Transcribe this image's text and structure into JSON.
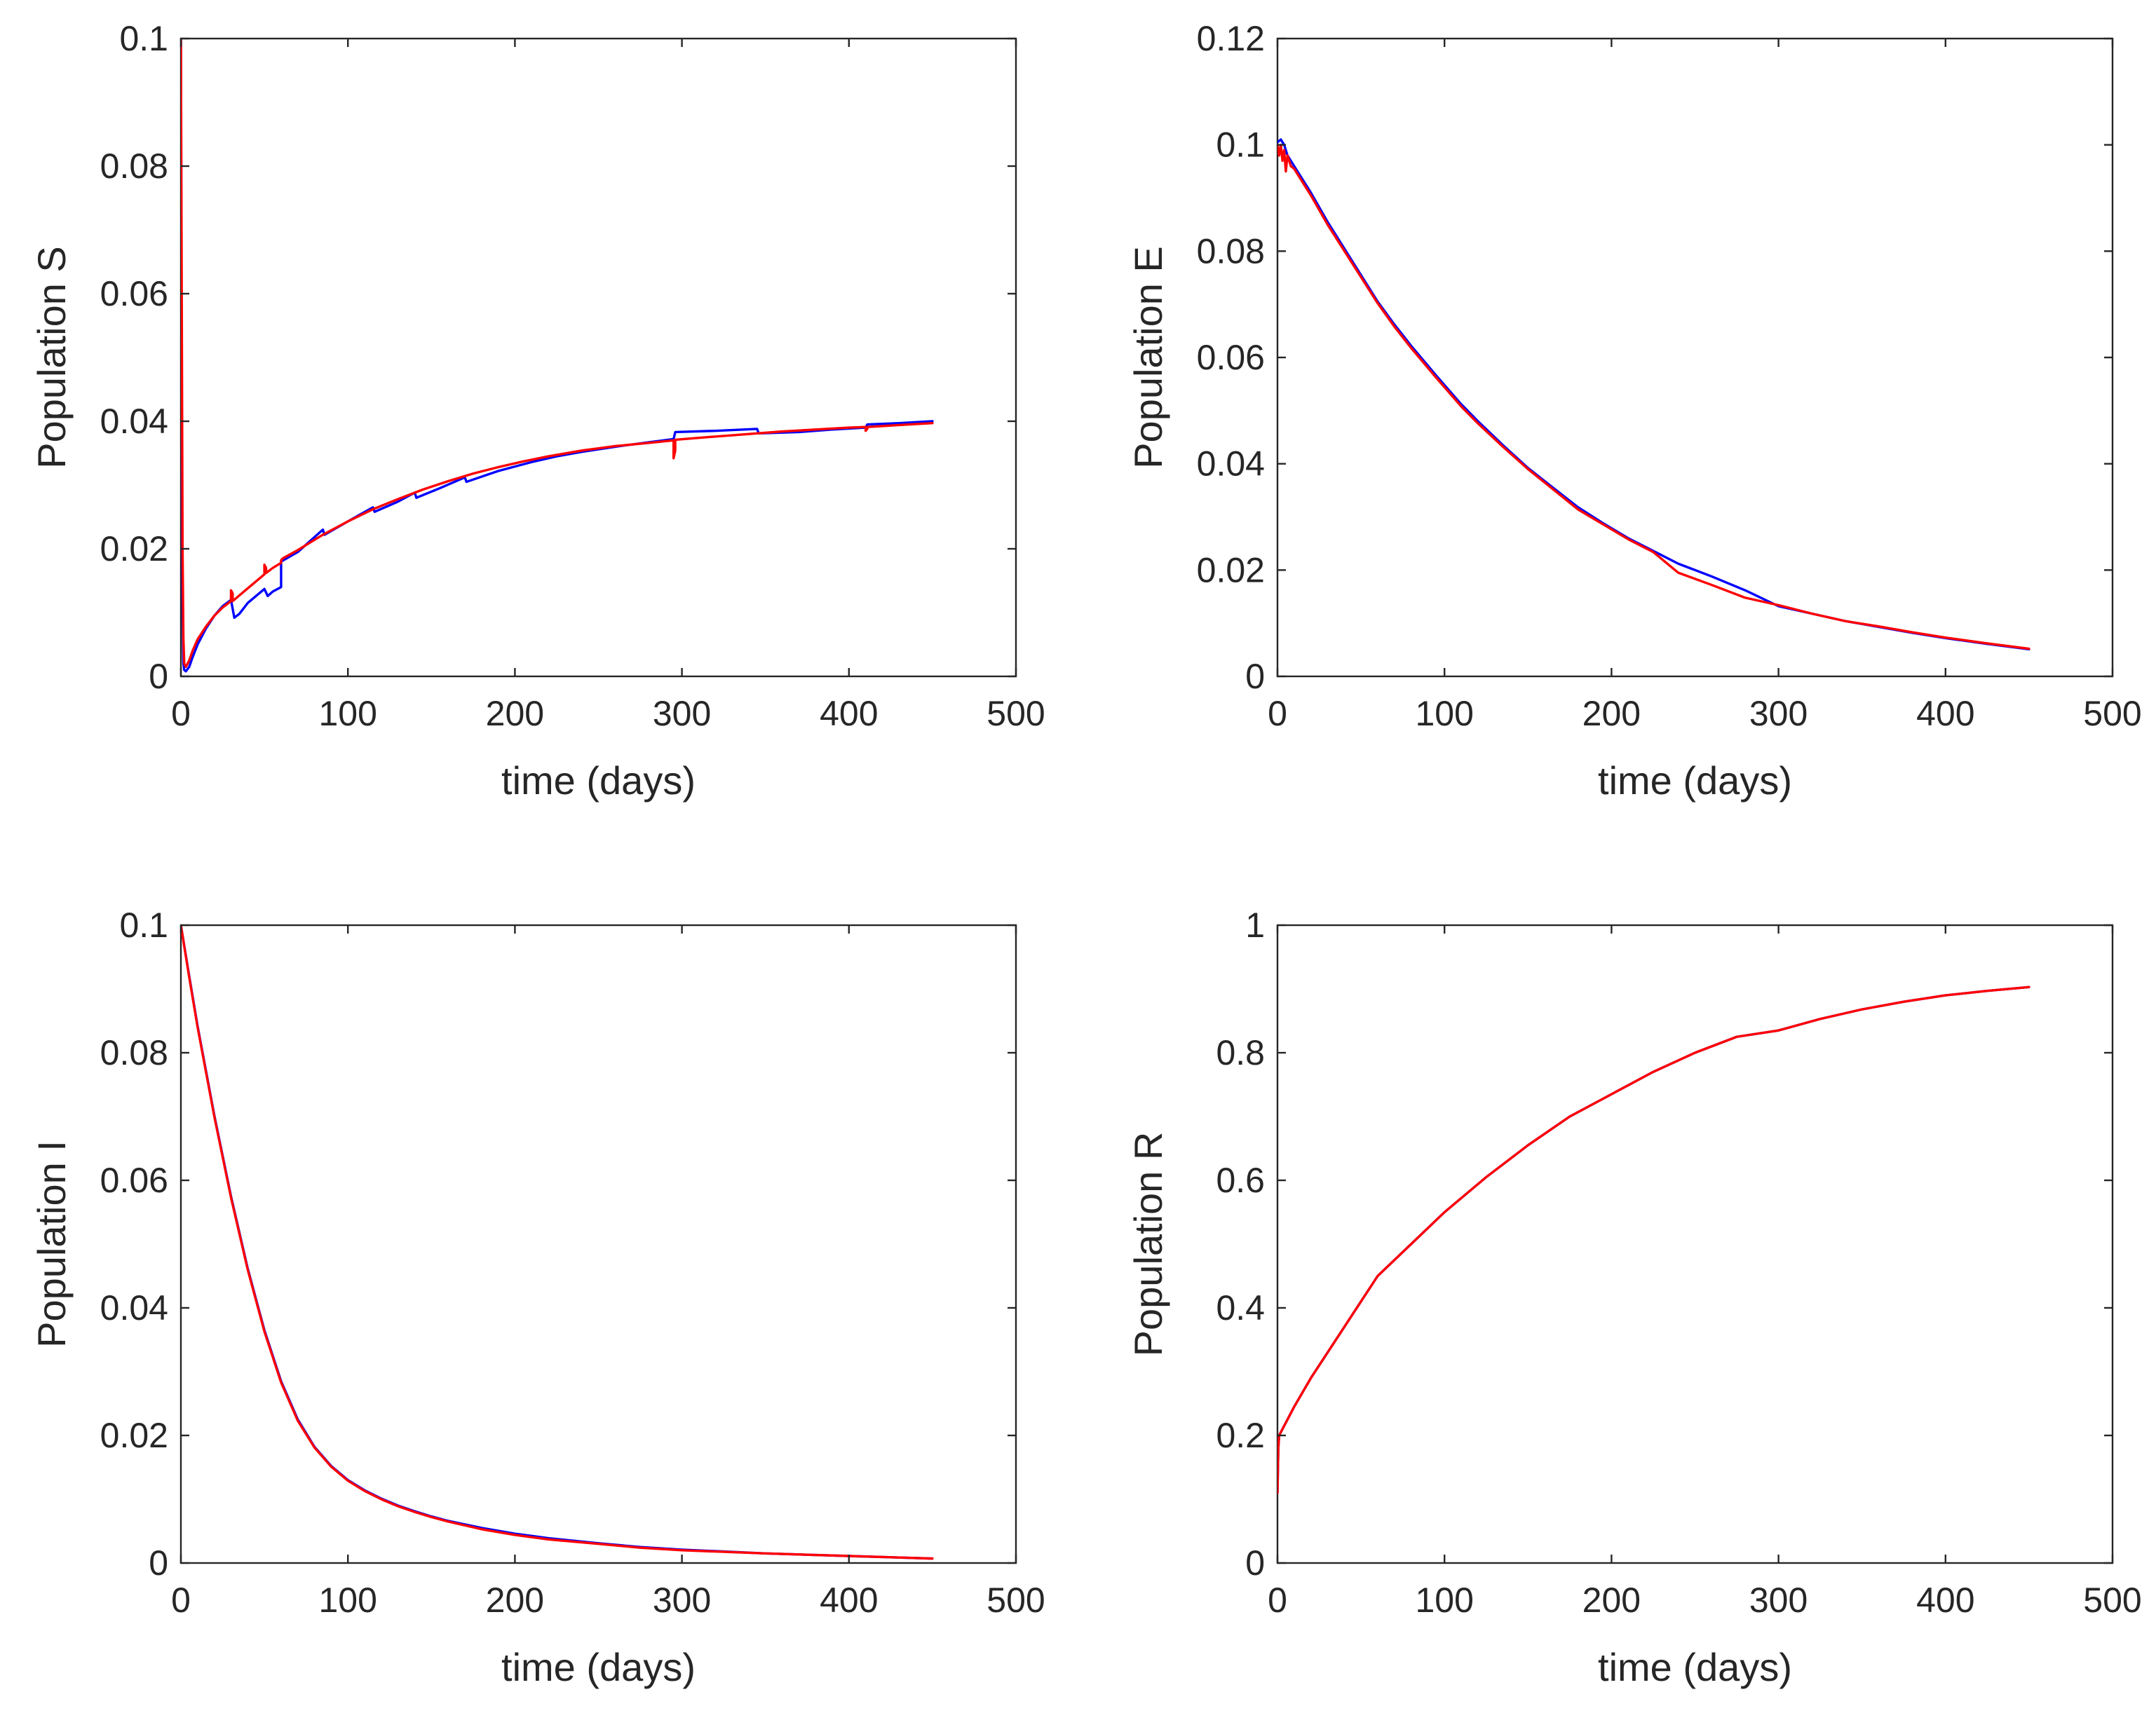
{
  "chart_data": [
    {
      "type": "line",
      "xlabel": "time (days)",
      "ylabel": "Population S",
      "xlim": [
        0,
        500
      ],
      "ylim": [
        0,
        0.1
      ],
      "xticks": [
        0,
        100,
        200,
        300,
        400,
        500
      ],
      "xtick_labels": [
        "0",
        "100",
        "200",
        "300",
        "400",
        "500"
      ],
      "yticks": [
        0,
        0.02,
        0.04,
        0.06,
        0.08,
        0.1
      ],
      "ytick_labels": [
        "0",
        "0.02",
        "0.04",
        "0.06",
        "0.08",
        "0.1"
      ],
      "grid": false,
      "series": [
        {
          "name": "blue",
          "color": "#0000ff",
          "x": [
            0,
            0.5,
            1,
            1.5,
            2,
            3,
            5,
            7,
            10,
            15,
            20,
            25,
            30,
            32,
            35,
            40,
            45,
            50,
            52,
            55,
            60,
            60,
            70,
            85,
            86,
            100,
            115,
            116,
            130,
            140,
            141,
            155,
            170,
            171,
            190,
            210,
            225,
            240,
            260,
            280,
            295,
            296,
            320,
            345,
            346,
            370,
            390,
            410,
            411,
            430,
            450
          ],
          "y": [
            0.1,
            0.04,
            0.012,
            0.002,
            0.001,
            0.0008,
            0.0015,
            0.003,
            0.005,
            0.0075,
            0.0095,
            0.011,
            0.012,
            0.0092,
            0.0098,
            0.0115,
            0.0126,
            0.0137,
            0.0126,
            0.0133,
            0.014,
            0.018,
            0.0195,
            0.023,
            0.0222,
            0.0243,
            0.0265,
            0.0258,
            0.0274,
            0.0288,
            0.028,
            0.0295,
            0.0312,
            0.0305,
            0.0322,
            0.0336,
            0.0345,
            0.0352,
            0.036,
            0.0367,
            0.0372,
            0.0383,
            0.0385,
            0.0388,
            0.0381,
            0.0383,
            0.0387,
            0.039,
            0.0395,
            0.0397,
            0.04
          ]
        },
        {
          "name": "red",
          "color": "#ff0000",
          "x": [
            0,
            0.5,
            1,
            1.5,
            2,
            3,
            5,
            7,
            10,
            15,
            20,
            25,
            30,
            30,
            31,
            31,
            40,
            50,
            50,
            51,
            51,
            55,
            60,
            60,
            61,
            70,
            85,
            100,
            115,
            130,
            145,
            160,
            175,
            190,
            205,
            220,
            240,
            260,
            280,
            295,
            295,
            296,
            296,
            310,
            330,
            345,
            360,
            380,
            400,
            410,
            410,
            411,
            411,
            430,
            450
          ],
          "y": [
            0.1,
            0.06,
            0.02,
            0.006,
            0.002,
            0.0015,
            0.0025,
            0.004,
            0.0058,
            0.0078,
            0.0095,
            0.0108,
            0.0118,
            0.0135,
            0.013,
            0.0118,
            0.0138,
            0.016,
            0.0175,
            0.017,
            0.0162,
            0.017,
            0.0178,
            0.0182,
            0.0185,
            0.0198,
            0.0222,
            0.0243,
            0.0262,
            0.0278,
            0.0293,
            0.0306,
            0.0318,
            0.0328,
            0.0337,
            0.0345,
            0.0354,
            0.0361,
            0.0366,
            0.037,
            0.0342,
            0.0354,
            0.0371,
            0.0374,
            0.0378,
            0.0381,
            0.0384,
            0.0387,
            0.039,
            0.0391,
            0.0385,
            0.0388,
            0.0391,
            0.0394,
            0.0397
          ]
        }
      ]
    },
    {
      "type": "line",
      "xlabel": "time (days)",
      "ylabel": "Population E",
      "xlim": [
        0,
        500
      ],
      "ylim": [
        0,
        0.12
      ],
      "xticks": [
        0,
        100,
        200,
        300,
        400,
        500
      ],
      "xtick_labels": [
        "0",
        "100",
        "200",
        "300",
        "400",
        "500"
      ],
      "yticks": [
        0,
        0.02,
        0.04,
        0.06,
        0.08,
        0.1,
        0.12
      ],
      "ytick_labels": [
        "0",
        "0.02",
        "0.04",
        "0.06",
        "0.08",
        "0.1",
        "0.12"
      ],
      "grid": false,
      "series": [
        {
          "name": "blue",
          "color": "#0000ff",
          "x": [
            0,
            2,
            4,
            6,
            10,
            20,
            30,
            45,
            60,
            70,
            80,
            95,
            110,
            120,
            135,
            150,
            165,
            180,
            195,
            210,
            225,
            240,
            260,
            280,
            300,
            320,
            340,
            360,
            380,
            400,
            425,
            450
          ],
          "y": [
            0.1005,
            0.101,
            0.1,
            0.098,
            0.096,
            0.091,
            0.0855,
            0.078,
            0.0705,
            0.0662,
            0.0622,
            0.0566,
            0.0512,
            0.048,
            0.0435,
            0.0392,
            0.0355,
            0.0318,
            0.0288,
            0.026,
            0.0236,
            0.0212,
            0.0188,
            0.0162,
            0.0132,
            0.0118,
            0.0104,
            0.0093,
            0.0082,
            0.0072,
            0.0061,
            0.0051
          ]
        },
        {
          "name": "red",
          "color": "#ff0000",
          "x": [
            0,
            1,
            2,
            3,
            4,
            5,
            6,
            8,
            10,
            20,
            30,
            45,
            60,
            70,
            80,
            95,
            110,
            120,
            135,
            150,
            165,
            180,
            195,
            210,
            225,
            240,
            260,
            280,
            300,
            320,
            340,
            360,
            380,
            400,
            425,
            450
          ],
          "y": [
            0.1,
            0.098,
            0.1,
            0.097,
            0.099,
            0.095,
            0.098,
            0.096,
            0.0955,
            0.0905,
            0.085,
            0.0776,
            0.0702,
            0.0658,
            0.0618,
            0.0562,
            0.0508,
            0.0476,
            0.0432,
            0.039,
            0.0352,
            0.0314,
            0.0286,
            0.0258,
            0.0234,
            0.0195,
            0.0172,
            0.0148,
            0.0134,
            0.0118,
            0.0104,
            0.0094,
            0.0083,
            0.0073,
            0.0062,
            0.0052
          ]
        }
      ]
    },
    {
      "type": "line",
      "xlabel": "time (days)",
      "ylabel": "Population I",
      "xlim": [
        0,
        500
      ],
      "ylim": [
        0,
        0.1
      ],
      "xticks": [
        0,
        100,
        200,
        300,
        400,
        500
      ],
      "xtick_labels": [
        "0",
        "100",
        "200",
        "300",
        "400",
        "500"
      ],
      "yticks": [
        0,
        0.02,
        0.04,
        0.06,
        0.08,
        0.1
      ],
      "ytick_labels": [
        "0",
        "0.02",
        "0.04",
        "0.06",
        "0.08",
        "0.1"
      ],
      "grid": false,
      "series": [
        {
          "name": "blue",
          "color": "#0000ff",
          "x": [
            0,
            5,
            10,
            20,
            30,
            40,
            50,
            60,
            70,
            80,
            90,
            100,
            110,
            120,
            130,
            140,
            150,
            160,
            180,
            200,
            220,
            250,
            275,
            300,
            350,
            400,
            450
          ],
          "y": [
            0.1,
            0.092,
            0.0842,
            0.0702,
            0.0575,
            0.0462,
            0.0365,
            0.0285,
            0.0225,
            0.0182,
            0.0152,
            0.013,
            0.0114,
            0.0101,
            0.009,
            0.0081,
            0.0073,
            0.0066,
            0.0055,
            0.0046,
            0.0039,
            0.0031,
            0.0025,
            0.0021,
            0.0015,
            0.0011,
            0.0007
          ]
        },
        {
          "name": "red",
          "color": "#ff0000",
          "x": [
            0,
            5,
            10,
            20,
            30,
            40,
            50,
            60,
            70,
            80,
            90,
            100,
            110,
            120,
            130,
            140,
            150,
            160,
            180,
            200,
            220,
            250,
            275,
            300,
            350,
            400,
            450
          ],
          "y": [
            0.1,
            0.0918,
            0.084,
            0.07,
            0.0573,
            0.046,
            0.0363,
            0.0283,
            0.0223,
            0.0181,
            0.0151,
            0.0129,
            0.0113,
            0.01,
            0.0089,
            0.008,
            0.0072,
            0.0065,
            0.0053,
            0.0044,
            0.0037,
            0.003,
            0.0024,
            0.002,
            0.0015,
            0.0011,
            0.0007
          ]
        }
      ]
    },
    {
      "type": "line",
      "xlabel": "time (days)",
      "ylabel": "Population R",
      "xlim": [
        0,
        500
      ],
      "ylim": [
        0,
        1
      ],
      "xticks": [
        0,
        100,
        200,
        300,
        400,
        500
      ],
      "xtick_labels": [
        "0",
        "100",
        "200",
        "300",
        "400",
        "500"
      ],
      "yticks": [
        0,
        0.2,
        0.4,
        0.6,
        0.8,
        1
      ],
      "ytick_labels": [
        "0",
        "0.2",
        "0.4",
        "0.6",
        "0.8",
        "1"
      ],
      "grid": false,
      "series": [
        {
          "name": "blue",
          "color": "#0000ff",
          "x": [
            0,
            0.5,
            1,
            2,
            5,
            10,
            20,
            30,
            45,
            60,
            80,
            100,
            125,
            150,
            175,
            200,
            225,
            250,
            275,
            300,
            325,
            350,
            375,
            400,
            425,
            450
          ],
          "y": [
            0.11,
            0.18,
            0.2,
            0.205,
            0.22,
            0.245,
            0.29,
            0.33,
            0.39,
            0.45,
            0.5,
            0.55,
            0.605,
            0.655,
            0.7,
            0.735,
            0.77,
            0.8,
            0.825,
            0.835,
            0.853,
            0.868,
            0.88,
            0.89,
            0.897,
            0.903
          ]
        },
        {
          "name": "red",
          "color": "#ff0000",
          "x": [
            0,
            0.5,
            1,
            2,
            5,
            10,
            20,
            30,
            45,
            60,
            80,
            100,
            125,
            150,
            175,
            200,
            225,
            250,
            275,
            300,
            325,
            350,
            375,
            400,
            425,
            450
          ],
          "y": [
            0.11,
            0.18,
            0.2,
            0.205,
            0.22,
            0.245,
            0.29,
            0.33,
            0.39,
            0.45,
            0.5,
            0.55,
            0.605,
            0.655,
            0.7,
            0.735,
            0.77,
            0.8,
            0.825,
            0.835,
            0.853,
            0.868,
            0.88,
            0.89,
            0.897,
            0.903
          ]
        }
      ]
    }
  ]
}
